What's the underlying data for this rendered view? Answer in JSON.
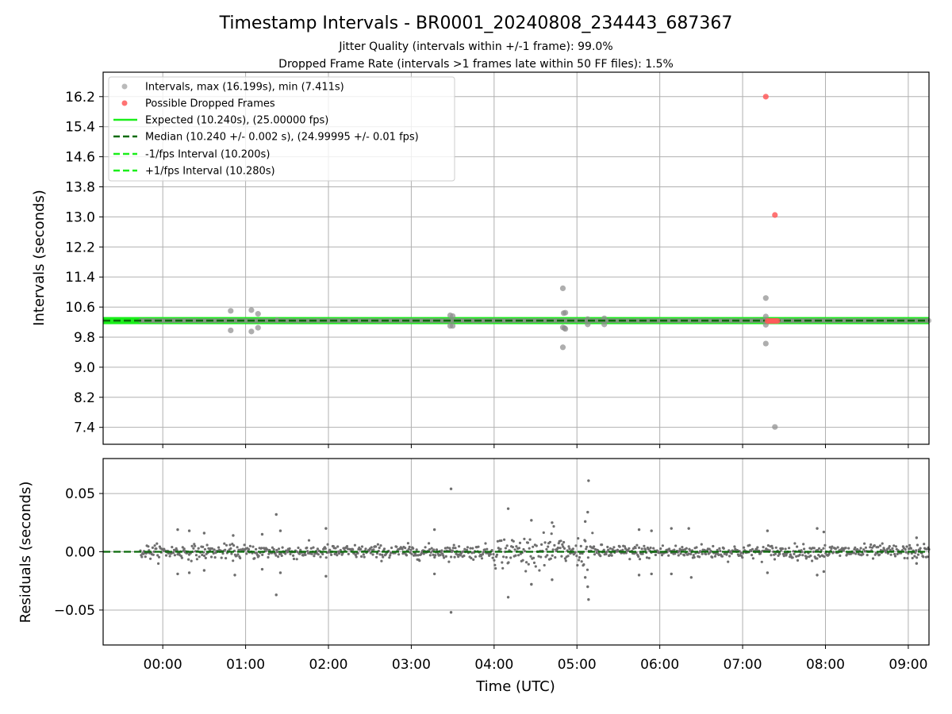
{
  "chart_data": [
    {
      "type": "scatter",
      "title": "Timestamp Intervals - BR0001_20240808_234443_687367",
      "subtitle_lines": [
        "Jitter Quality (intervals within +/-1 frame): 99.0%",
        "Dropped Frame Rate (intervals >1 frames late within 50 FF files): 1.5%"
      ],
      "ylabel": "Intervals (seconds)",
      "ylim": [
        6.95,
        16.85
      ],
      "y_ticks": [
        "7.4",
        "8.2",
        "9.0",
        "9.8",
        "10.6",
        "11.4",
        "12.2",
        "13.0",
        "13.8",
        "14.6",
        "15.4",
        "16.2"
      ],
      "x_ticks": [
        "00:00",
        "01:00",
        "02:00",
        "03:00",
        "04:00",
        "05:00",
        "06:00",
        "07:00",
        "08:00",
        "09:00"
      ],
      "xlim_hours": [
        -0.72,
        9.25
      ],
      "grid": true,
      "legend_location": "upper left",
      "legend": [
        {
          "label": "Intervals, max (16.199s), min (7.411s)",
          "marker": "dot",
          "color": "#8c8c8c"
        },
        {
          "label": "Possible Dropped Frames",
          "marker": "dot",
          "color": "#ff5a5a"
        },
        {
          "label": "Expected (10.240s), (25.00000 fps)",
          "marker": "line",
          "color": "#1aee1a"
        },
        {
          "label": "Median (10.240 +/- 0.002 s), (24.99995 +/- 0.01 fps)",
          "marker": "dash",
          "color": "#0b6b0b"
        },
        {
          "label": "-1/fps Interval (10.200s)",
          "marker": "dash",
          "color": "#1aee1a"
        },
        {
          "label": "+1/fps Interval (10.280s)",
          "marker": "dash",
          "color": "#1aee1a"
        }
      ],
      "reference_lines": {
        "expected": 10.24,
        "median": 10.24,
        "minus_one_frame": 10.2,
        "plus_one_frame": 10.28
      },
      "interval_start_hours": -0.27,
      "interval_end_hours": 9.25,
      "typical_interval": 10.24,
      "outlier_points": [
        {
          "x": 0.82,
          "y": 10.5
        },
        {
          "x": 0.82,
          "y": 9.98
        },
        {
          "x": 1.07,
          "y": 10.52
        },
        {
          "x": 1.07,
          "y": 9.95
        },
        {
          "x": 1.15,
          "y": 10.42
        },
        {
          "x": 1.15,
          "y": 10.05
        },
        {
          "x": 1.38,
          "y": 10.25
        },
        {
          "x": 3.47,
          "y": 10.38
        },
        {
          "x": 3.5,
          "y": 10.36
        },
        {
          "x": 3.47,
          "y": 10.1
        },
        {
          "x": 3.5,
          "y": 10.1
        },
        {
          "x": 4.83,
          "y": 11.1
        },
        {
          "x": 4.84,
          "y": 10.44
        },
        {
          "x": 4.86,
          "y": 10.45
        },
        {
          "x": 4.83,
          "y": 10.06
        },
        {
          "x": 4.85,
          "y": 10.04
        },
        {
          "x": 4.86,
          "y": 10.02
        },
        {
          "x": 4.83,
          "y": 9.53
        },
        {
          "x": 5.13,
          "y": 10.28
        },
        {
          "x": 5.13,
          "y": 10.14
        },
        {
          "x": 5.33,
          "y": 10.3
        },
        {
          "x": 5.33,
          "y": 10.14
        },
        {
          "x": 7.28,
          "y": 10.84
        },
        {
          "x": 7.28,
          "y": 10.35
        },
        {
          "x": 7.28,
          "y": 10.13
        },
        {
          "x": 7.28,
          "y": 9.63
        },
        {
          "x": 7.39,
          "y": 7.41
        }
      ],
      "dropped_frame_points": [
        {
          "x": 7.28,
          "y": 16.199
        },
        {
          "x": 7.39,
          "y": 13.05
        },
        {
          "x": 7.3,
          "y": 10.23
        },
        {
          "x": 7.32,
          "y": 10.23
        },
        {
          "x": 7.34,
          "y": 10.23
        },
        {
          "x": 7.36,
          "y": 10.23
        },
        {
          "x": 7.38,
          "y": 10.23
        },
        {
          "x": 7.4,
          "y": 10.23
        },
        {
          "x": 7.42,
          "y": 10.23
        }
      ]
    },
    {
      "type": "scatter",
      "xlabel": "Time (UTC)",
      "ylabel": "Residuals (seconds)",
      "ylim": [
        -0.08,
        0.08
      ],
      "y_ticks": [
        {
          "value": -0.05,
          "label": "−0.05"
        },
        {
          "value": 0.0,
          "label": "0.00"
        },
        {
          "value": 0.05,
          "label": "0.05"
        }
      ],
      "x_ticks": [
        "00:00",
        "01:00",
        "02:00",
        "03:00",
        "04:00",
        "05:00",
        "06:00",
        "07:00",
        "08:00",
        "09:00"
      ],
      "xlim_hours": [
        -0.72,
        9.25
      ],
      "grid": true,
      "zero_line": 0.0,
      "residual_start_hours": -0.27,
      "residual_end_hours": 9.25,
      "typical_spread": 0.003,
      "outlier_points": [
        {
          "x": 0.18,
          "y": 0.019
        },
        {
          "x": 0.18,
          "y": -0.019
        },
        {
          "x": 0.32,
          "y": 0.018
        },
        {
          "x": 0.32,
          "y": -0.018
        },
        {
          "x": 0.5,
          "y": 0.016
        },
        {
          "x": 0.5,
          "y": -0.016
        },
        {
          "x": 0.85,
          "y": 0.014
        },
        {
          "x": 0.87,
          "y": -0.02
        },
        {
          "x": 1.2,
          "y": 0.015
        },
        {
          "x": 1.2,
          "y": -0.015
        },
        {
          "x": 1.37,
          "y": 0.032
        },
        {
          "x": 1.37,
          "y": -0.037
        },
        {
          "x": 1.42,
          "y": 0.018
        },
        {
          "x": 1.42,
          "y": -0.018
        },
        {
          "x": 1.97,
          "y": 0.02
        },
        {
          "x": 1.97,
          "y": -0.021
        },
        {
          "x": 3.28,
          "y": 0.019
        },
        {
          "x": 3.28,
          "y": -0.019
        },
        {
          "x": 3.48,
          "y": 0.054
        },
        {
          "x": 3.48,
          "y": -0.052
        },
        {
          "x": 4.17,
          "y": 0.037
        },
        {
          "x": 4.17,
          "y": -0.039
        },
        {
          "x": 4.45,
          "y": 0.027
        },
        {
          "x": 4.45,
          "y": -0.028
        },
        {
          "x": 4.7,
          "y": 0.025
        },
        {
          "x": 4.7,
          "y": -0.024
        },
        {
          "x": 5.1,
          "y": 0.026
        },
        {
          "x": 5.1,
          "y": -0.022
        },
        {
          "x": 5.14,
          "y": 0.061
        },
        {
          "x": 5.14,
          "y": -0.041
        },
        {
          "x": 5.13,
          "y": 0.034
        },
        {
          "x": 5.13,
          "y": -0.03
        },
        {
          "x": 5.75,
          "y": 0.019
        },
        {
          "x": 5.75,
          "y": -0.02
        },
        {
          "x": 5.9,
          "y": 0.018
        },
        {
          "x": 5.9,
          "y": -0.019
        },
        {
          "x": 6.14,
          "y": 0.02
        },
        {
          "x": 6.14,
          "y": -0.019
        },
        {
          "x": 6.35,
          "y": 0.02
        },
        {
          "x": 6.38,
          "y": -0.022
        },
        {
          "x": 7.3,
          "y": 0.018
        },
        {
          "x": 7.3,
          "y": -0.018
        },
        {
          "x": 7.9,
          "y": 0.02
        },
        {
          "x": 7.9,
          "y": -0.02
        },
        {
          "x": 7.98,
          "y": 0.017
        },
        {
          "x": 7.98,
          "y": -0.017
        },
        {
          "x": 9.1,
          "y": 0.012
        },
        {
          "x": 9.1,
          "y": -0.01
        }
      ]
    }
  ],
  "colors": {
    "grid": "#b0b0b0",
    "interval_dot": "#8c8c8c",
    "dropped_dot": "#ff5a5a",
    "expected_line": "#1aee1a",
    "median_line": "#0b6b0b",
    "residual_dot": "#6e6e6e"
  }
}
